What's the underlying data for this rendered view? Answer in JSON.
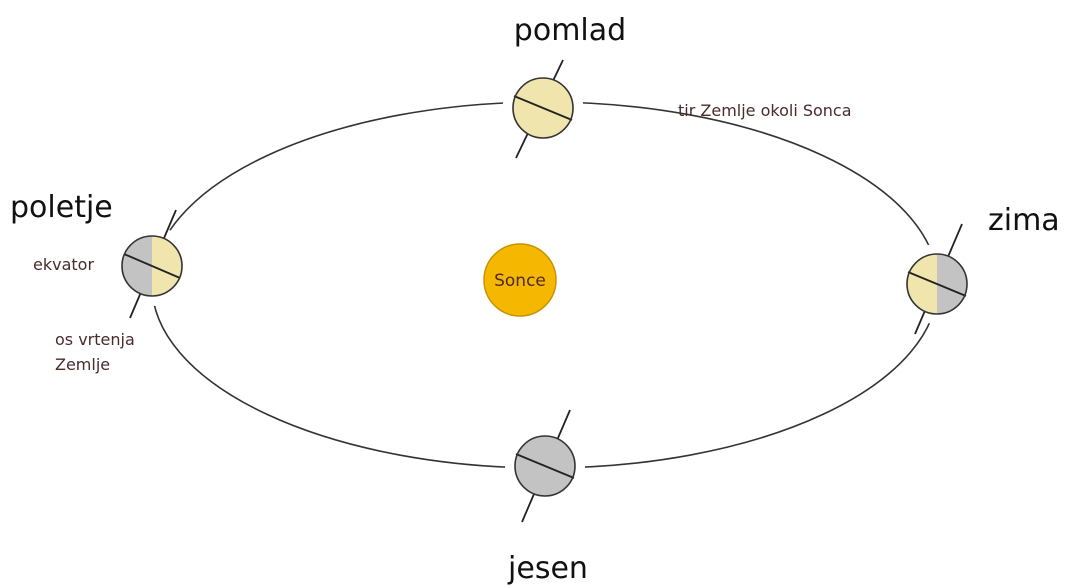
{
  "seasons": {
    "spring": "pomlad",
    "summer": "poletje",
    "winter": "zima",
    "autumn": "jesen"
  },
  "sun": "Sonce",
  "annotations": {
    "orbit": "tir Zemlje okoli Sonca",
    "equator": "ekvator",
    "axis_line1": "os vrtenja",
    "axis_line2": "Zemlje"
  }
}
